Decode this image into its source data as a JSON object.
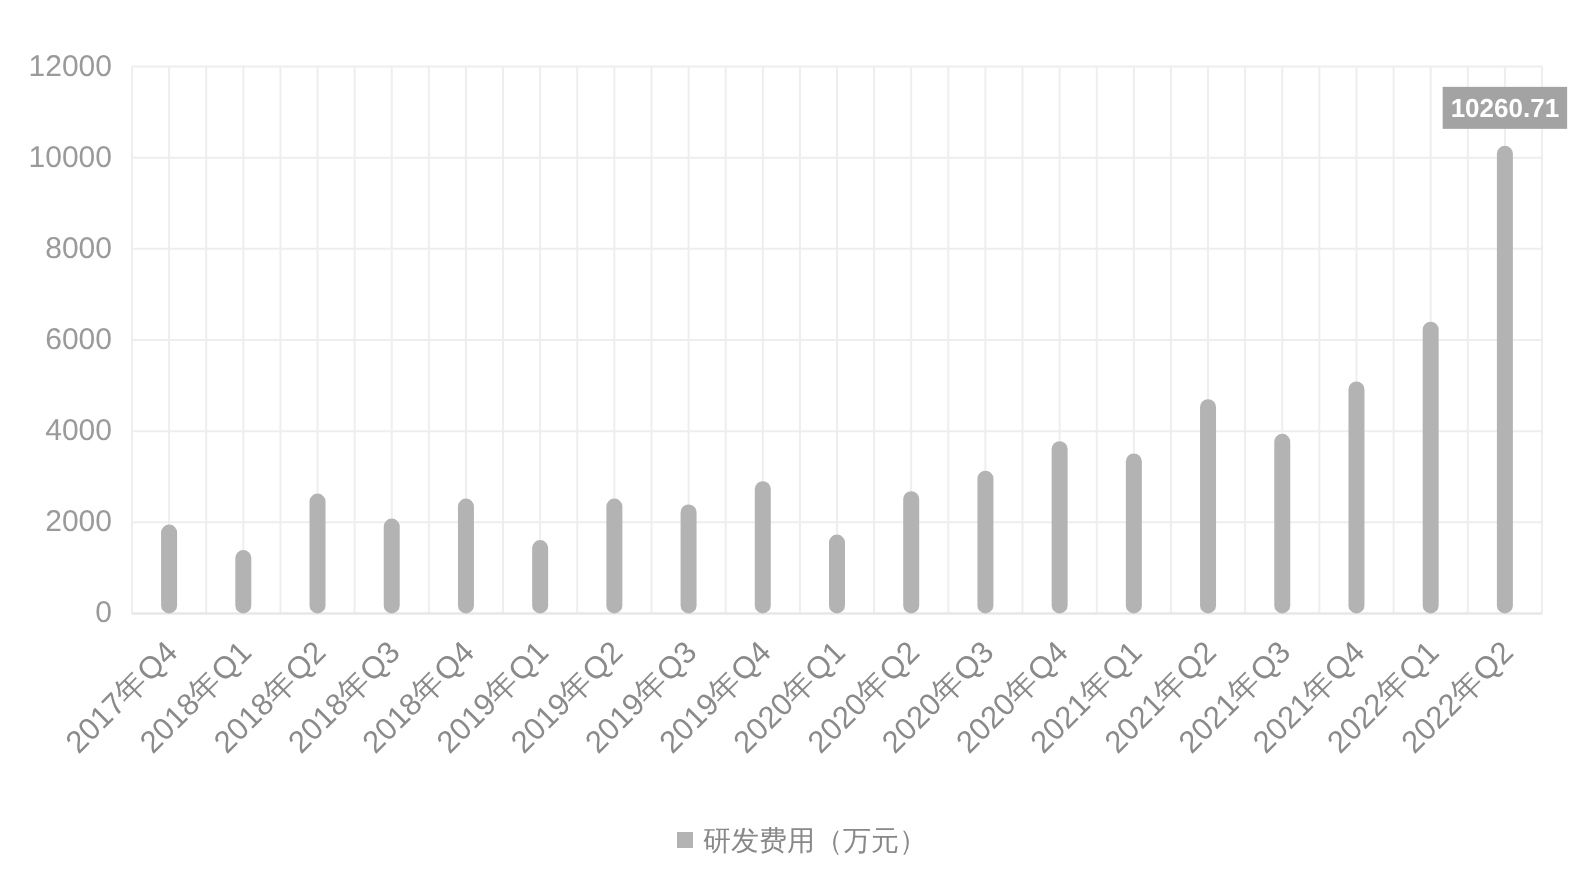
{
  "chart_data": {
    "type": "bar",
    "categories": [
      "2017年Q4",
      "2018年Q1",
      "2018年Q2",
      "2018年Q3",
      "2018年Q4",
      "2019年Q1",
      "2019年Q2",
      "2019年Q3",
      "2019年Q4",
      "2020年Q1",
      "2020年Q2",
      "2020年Q3",
      "2020年Q4",
      "2021年Q1",
      "2021年Q2",
      "2021年Q3",
      "2021年Q4",
      "2022年Q1",
      "2022年Q2"
    ],
    "series": [
      {
        "name": "研发费用（万元）",
        "color": "#b3b3b3",
        "values": [
          1950,
          1390,
          2630,
          2080,
          2520,
          1610,
          2520,
          2390,
          2900,
          1730,
          2680,
          3130,
          3780,
          3510,
          4700,
          3940,
          5090,
          6400,
          10260.71
        ],
        "value_labels": [
          null,
          null,
          null,
          null,
          null,
          null,
          null,
          null,
          null,
          null,
          null,
          null,
          null,
          null,
          null,
          null,
          null,
          null,
          "10260.71"
        ]
      }
    ],
    "ylim": [
      0,
      12000
    ],
    "yticks": [
      0,
      2000,
      4000,
      6000,
      8000,
      10000,
      12000
    ],
    "grid": true,
    "legend": "bottom"
  }
}
